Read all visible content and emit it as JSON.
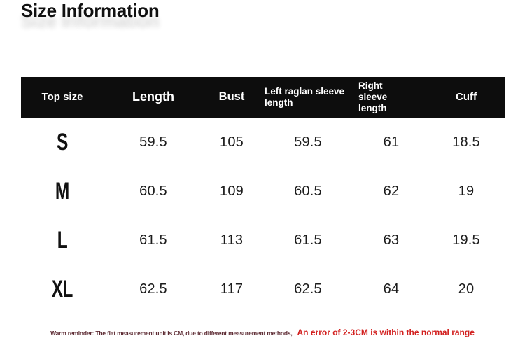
{
  "title": "Size Information",
  "chart_data": {
    "type": "table",
    "title": "Size Information",
    "unit": "CM",
    "columns": [
      "Top size",
      "Length",
      "Bust",
      "Left raglan sleeve length",
      "Right sleeve length",
      "Cuff"
    ],
    "rows": [
      [
        "S",
        "59.5",
        "105",
        "59.5",
        "61",
        "18.5"
      ],
      [
        "M",
        "60.5",
        "109",
        "60.5",
        "62",
        "19"
      ],
      [
        "L",
        "61.5",
        "113",
        "61.5",
        "63",
        "19.5"
      ],
      [
        "XL",
        "62.5",
        "117",
        "62.5",
        "64",
        "20"
      ]
    ]
  },
  "footer": {
    "reminder": "Warm reminder: The flat measurement unit is CM, due to different measurement methods,",
    "highlight": "An error of 2-3CM is within the normal range"
  },
  "colors": {
    "header_bg": "#0d0d0d",
    "header_text": "#ffffff",
    "body_text": "#1c1c1c",
    "reminder_text": "#5e2c34",
    "highlight_text": "#d2201f"
  }
}
